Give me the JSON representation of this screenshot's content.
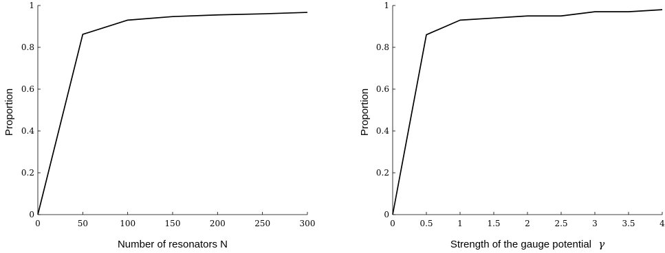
{
  "chart_data": [
    {
      "type": "line",
      "xlabel": "Number of resonators N",
      "ylabel": "Proportion",
      "xlim": [
        0,
        300
      ],
      "ylim": [
        0,
        1
      ],
      "xticks": [
        0,
        50,
        100,
        150,
        200,
        250,
        300
      ],
      "xtick_labels": [
        "0",
        "50",
        "100",
        "150",
        "200",
        "250",
        "300"
      ],
      "yticks": [
        0,
        0.2,
        0.4,
        0.6,
        0.8,
        1
      ],
      "ytick_labels": [
        "0",
        "0.2",
        "0.4",
        "0.6",
        "0.8",
        "1"
      ],
      "grid": false,
      "series": [
        {
          "color": "#000000",
          "x": [
            0,
            50,
            100,
            150,
            200,
            250,
            300
          ],
          "y": [
            0,
            0.862,
            0.93,
            0.947,
            0.955,
            0.96,
            0.967
          ]
        }
      ]
    },
    {
      "type": "line",
      "xlabel": "Strength of the gauge potential",
      "xlabel_symbol": "γ",
      "ylabel": "Proportion",
      "xlim": [
        0,
        4
      ],
      "ylim": [
        0,
        1
      ],
      "xticks": [
        0,
        0.5,
        1,
        1.5,
        2,
        2.5,
        3,
        3.5,
        4
      ],
      "xtick_labels": [
        "0",
        "0.5",
        "1",
        "1.5",
        "2",
        "2.5",
        "3",
        "3.5",
        "4"
      ],
      "yticks": [
        0,
        0.2,
        0.4,
        0.6,
        0.8,
        1
      ],
      "ytick_labels": [
        "0",
        "0.2",
        "0.4",
        "0.6",
        "0.8",
        "1"
      ],
      "grid": false,
      "series": [
        {
          "color": "#000000",
          "x": [
            0,
            0.5,
            1,
            1.5,
            2,
            2.5,
            3,
            3.5,
            4
          ],
          "y": [
            0,
            0.86,
            0.93,
            0.94,
            0.95,
            0.95,
            0.97,
            0.97,
            0.98
          ]
        }
      ]
    }
  ]
}
